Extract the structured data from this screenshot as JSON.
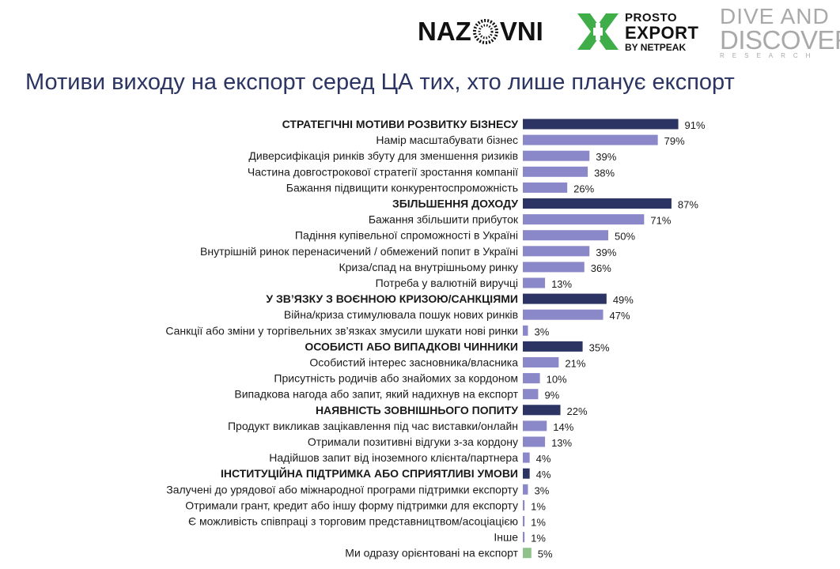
{
  "logos": {
    "nazovni": "NAZOVNI",
    "prosto_line1": "PROSTO",
    "prosto_line2": "EXPORT",
    "prosto_line3": "BY NETPEAK",
    "dive_line1": "DIVE AND",
    "dive_line2": "DISCOVERY",
    "dive_line3": "RESEARCH"
  },
  "title": "Мотиви виходу на експорт серед ЦА тих, хто лише планує експорт",
  "colors": {
    "header_bar": "#2b3462",
    "item_bar": "#8b88c9",
    "other_bar": "#8fc28a",
    "title": "#2b3462"
  },
  "chart_data": {
    "type": "bar",
    "orientation": "horizontal",
    "unit": "%",
    "xlim": [
      0,
      100
    ],
    "grid": false,
    "rows": [
      {
        "label": "СТРАТЕГІЧНІ МОТИВИ РОЗВИТКУ БІЗНЕСУ",
        "value": 91,
        "kind": "header"
      },
      {
        "label": "Намір масштабувати бізнес",
        "value": 79,
        "kind": "item"
      },
      {
        "label": "Диверсифікація ринків збуту для зменшення ризиків",
        "value": 39,
        "kind": "item"
      },
      {
        "label": "Частина довгострокової стратегії зростання компанії",
        "value": 38,
        "kind": "item"
      },
      {
        "label": "Бажання підвищити конкурентоспроможність",
        "value": 26,
        "kind": "item"
      },
      {
        "label": "ЗБІЛЬШЕННЯ ДОХОДУ",
        "value": 87,
        "kind": "header"
      },
      {
        "label": "Бажання збільшити прибуток",
        "value": 71,
        "kind": "item"
      },
      {
        "label": "Падіння купівельної спроможності в Україні",
        "value": 50,
        "kind": "item"
      },
      {
        "label": "Внутрішній ринок перенасичений / обмежений попит в Україні",
        "value": 39,
        "kind": "item"
      },
      {
        "label": "Криза/спад на внутрішньому ринку",
        "value": 36,
        "kind": "item"
      },
      {
        "label": "Потреба у валютній виручці",
        "value": 13,
        "kind": "item"
      },
      {
        "label": "У ЗВ’ЯЗКУ З ВОЄННОЮ КРИЗОЮ/САНКЦІЯМИ",
        "value": 49,
        "kind": "header"
      },
      {
        "label": "Війна/криза стимулювала пошук нових ринків",
        "value": 47,
        "kind": "item"
      },
      {
        "label": "Санкції або зміни у торгівельних зв’язках змусили шукати нові ринки",
        "value": 3,
        "kind": "item"
      },
      {
        "label": "ОСОБИСТІ АБО ВИПАДКОВІ ЧИННИКИ",
        "value": 35,
        "kind": "header"
      },
      {
        "label": "Особистий інтерес засновника/власника",
        "value": 21,
        "kind": "item"
      },
      {
        "label": "Присутність родичів або знайомих за кордоном",
        "value": 10,
        "kind": "item"
      },
      {
        "label": "Випадкова нагода або запит, який надихнув на експорт",
        "value": 9,
        "kind": "item"
      },
      {
        "label": "НАЯВНІСТЬ ЗОВНІШНЬОГО ПОПИТУ",
        "value": 22,
        "kind": "header"
      },
      {
        "label": "Продукт викликав зацікавлення під час виставки/онлайн",
        "value": 14,
        "kind": "item"
      },
      {
        "label": "Отримали позитивні відгуки з-за кордону",
        "value": 13,
        "kind": "item"
      },
      {
        "label": "Надійшов запит від іноземного клієнта/партнера",
        "value": 4,
        "kind": "item"
      },
      {
        "label": "ІНСТИТУЦІЙНА ПІДТРИМКА АБО СПРИЯТЛИВІ УМОВИ",
        "value": 4,
        "kind": "header"
      },
      {
        "label": "Залучені до урядової або міжнародної програми підтримки експорту",
        "value": 3,
        "kind": "item"
      },
      {
        "label": "Отримали грант, кредит або іншу форму підтримки для експорту",
        "value": 1,
        "kind": "item"
      },
      {
        "label": "Є можливість співпраці з торговим представництвом/асоціацією",
        "value": 1,
        "kind": "item"
      },
      {
        "label": "Інше",
        "value": 1,
        "kind": "item"
      },
      {
        "label": "Ми одразу орієнтовані на експорт",
        "value": 5,
        "kind": "other"
      }
    ]
  }
}
